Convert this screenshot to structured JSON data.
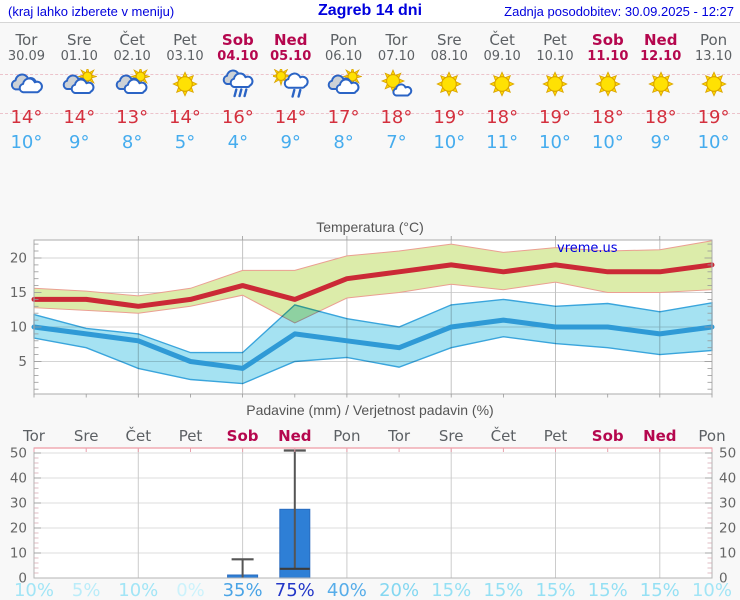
{
  "header": {
    "hint": "(kraj lahko izberete v meniju)",
    "title": "Zagreb 14 dni",
    "updated": "Zadnja posodobitev: 30.09.2025 - 12:27"
  },
  "watermark": "vreme.us",
  "colors": {
    "weekend": "#b5074e",
    "weekday": "#5c6064",
    "tmax_text": "#d4303e",
    "tmin_text": "#45acee",
    "header_blue": "#0000dd"
  },
  "days": [
    {
      "name": "Tor",
      "date": "30.09",
      "weekend": false,
      "icon": "cloudy",
      "tmax": "14°",
      "tmin": "10°",
      "pop": "10%",
      "pop_color": "#a2e5f6"
    },
    {
      "name": "Sre",
      "date": "01.10",
      "weekend": false,
      "icon": "partly-cloudy",
      "tmax": "14°",
      "tmin": "9°",
      "pop": "5%",
      "pop_color": "#baecf9"
    },
    {
      "name": "Čet",
      "date": "02.10",
      "weekend": false,
      "icon": "partly-cloudy",
      "tmax": "13°",
      "tmin": "8°",
      "pop": "10%",
      "pop_color": "#a2e5f6"
    },
    {
      "name": "Pet",
      "date": "03.10",
      "weekend": false,
      "icon": "sunny",
      "tmax": "14°",
      "tmin": "5°",
      "pop": "0%",
      "pop_color": "#ccf2fb"
    },
    {
      "name": "Sob",
      "date": "04.10",
      "weekend": true,
      "icon": "rain",
      "tmax": "16°",
      "tmin": "4°",
      "pop": "35%",
      "pop_color": "#4aa4e6"
    },
    {
      "name": "Ned",
      "date": "05.10",
      "weekend": true,
      "icon": "sun-rain",
      "tmax": "14°",
      "tmin": "9°",
      "pop": "75%",
      "pop_color": "#2337c8"
    },
    {
      "name": "Pon",
      "date": "06.10",
      "weekend": false,
      "icon": "partly-cloudy",
      "tmax": "17°",
      "tmin": "8°",
      "pop": "40%",
      "pop_color": "#57ade9"
    },
    {
      "name": "Tor",
      "date": "07.10",
      "weekend": false,
      "icon": "mostly-sunny",
      "tmax": "18°",
      "tmin": "7°",
      "pop": "20%",
      "pop_color": "#84d7f1"
    },
    {
      "name": "Sre",
      "date": "08.10",
      "weekend": false,
      "icon": "sunny",
      "tmax": "19°",
      "tmin": "10°",
      "pop": "15%",
      "pop_color": "#95e0f4"
    },
    {
      "name": "Čet",
      "date": "09.10",
      "weekend": false,
      "icon": "sunny",
      "tmax": "18°",
      "tmin": "11°",
      "pop": "15%",
      "pop_color": "#95e0f4"
    },
    {
      "name": "Pet",
      "date": "10.10",
      "weekend": false,
      "icon": "sunny",
      "tmax": "19°",
      "tmin": "10°",
      "pop": "15%",
      "pop_color": "#95e0f4"
    },
    {
      "name": "Sob",
      "date": "11.10",
      "weekend": true,
      "icon": "sunny",
      "tmax": "18°",
      "tmin": "10°",
      "pop": "15%",
      "pop_color": "#95e0f4"
    },
    {
      "name": "Ned",
      "date": "12.10",
      "weekend": true,
      "icon": "sunny",
      "tmax": "18°",
      "tmin": "9°",
      "pop": "15%",
      "pop_color": "#95e0f4"
    },
    {
      "name": "Pon",
      "date": "13.10",
      "weekend": false,
      "icon": "sunny",
      "tmax": "19°",
      "tmin": "10°",
      "pop": "10%",
      "pop_color": "#a2e5f6"
    }
  ],
  "chart_data": [
    {
      "type": "line",
      "title": "Temperatura (°C)",
      "categories": [
        "Tor 30.09",
        "Sre 01.10",
        "Čet 02.10",
        "Pet 03.10",
        "Sob 04.10",
        "Ned 05.10",
        "Pon 06.10",
        "Tor 07.10",
        "Sre 08.10",
        "Čet 09.10",
        "Pet 10.10",
        "Sob 11.10",
        "Ned 12.10",
        "Pon 13.10"
      ],
      "ylim": [
        0.3,
        22.6
      ],
      "yticks": [
        5,
        10,
        15,
        20
      ],
      "grid": true,
      "series": [
        {
          "name": "Max temperatura",
          "color": "#cb2936",
          "values": [
            14,
            14,
            13,
            14,
            16,
            14,
            17,
            18,
            19,
            18,
            19,
            18,
            18,
            19
          ]
        },
        {
          "name": "Max razpon zgoraj",
          "color": "#dcecaa",
          "values": [
            15.6,
            15.2,
            14.5,
            15.6,
            18.2,
            18.2,
            20.3,
            21,
            22,
            20.8,
            21.5,
            21,
            21.2,
            22.5
          ]
        },
        {
          "name": "Max razpon spodaj",
          "color": "#dcecaa",
          "values": [
            12.8,
            12.4,
            12,
            13,
            14.6,
            10.6,
            14.2,
            15,
            16.2,
            15.4,
            16.5,
            15,
            15,
            15.4
          ]
        },
        {
          "name": "Min temperatura",
          "color": "#2f9ad6",
          "values": [
            10,
            9,
            8,
            5,
            4,
            9,
            8,
            7,
            10,
            11,
            10,
            10,
            9,
            10
          ]
        },
        {
          "name": "Min razpon zgoraj",
          "color": "#a5e2f2",
          "values": [
            11.8,
            9.8,
            9,
            6.3,
            6.3,
            13.2,
            11.2,
            10,
            13.2,
            14,
            13,
            13.4,
            12.2,
            13.5
          ]
        },
        {
          "name": "Min razpon spodaj",
          "color": "#a5e2f2",
          "values": [
            8.4,
            7,
            4,
            2.4,
            1.8,
            5,
            5.6,
            4.2,
            7,
            8.6,
            7.6,
            7,
            6,
            6.6
          ]
        }
      ]
    },
    {
      "type": "bar",
      "title": "Padavine (mm) / Verjetnost padavin (%)",
      "categories": [
        "Tor",
        "Sre",
        "Čet",
        "Pet",
        "Sob",
        "Ned",
        "Pon",
        "Tor",
        "Sre",
        "Čet",
        "Pet",
        "Sob",
        "Ned",
        "Pon"
      ],
      "ylim": [
        0,
        52
      ],
      "yticks": [
        0,
        10,
        20,
        30,
        40,
        50
      ],
      "values": [
        0,
        0,
        0,
        0,
        1.2,
        27.5,
        0,
        0,
        0,
        0,
        0,
        0,
        0,
        0
      ],
      "whisker_max": [
        null,
        null,
        null,
        null,
        7.5,
        51,
        null,
        null,
        null,
        null,
        null,
        null,
        null,
        null
      ],
      "median": [
        null,
        null,
        null,
        null,
        null,
        3.7,
        null,
        null,
        null,
        null,
        null,
        null,
        null,
        null
      ],
      "bar_color": "#2e7fd6",
      "probability_pct": [
        10,
        5,
        10,
        0,
        35,
        75,
        40,
        20,
        15,
        15,
        15,
        15,
        15,
        10
      ]
    }
  ]
}
